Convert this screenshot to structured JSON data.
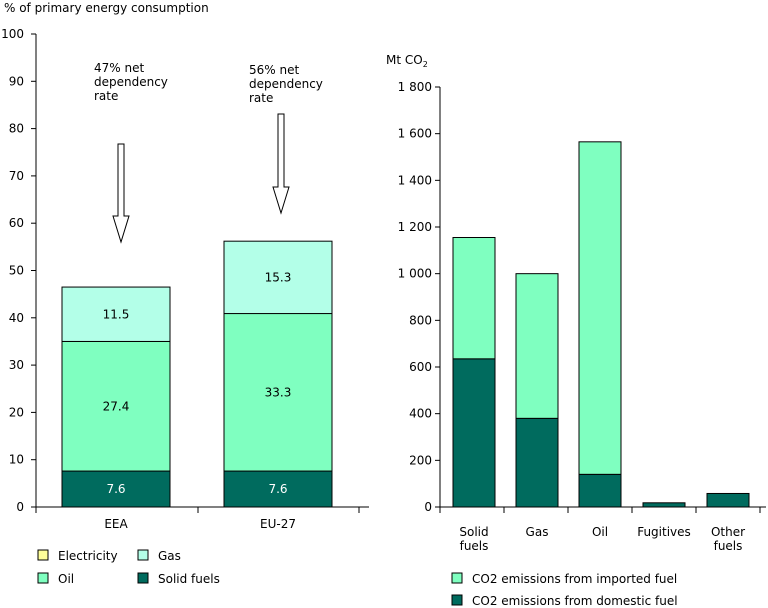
{
  "chart_data": [
    {
      "type": "bar",
      "stacked": true,
      "ylabel": "% of primary energy consumption",
      "ylim": [
        0,
        100
      ],
      "yticks": [
        0,
        10,
        20,
        30,
        40,
        50,
        60,
        70,
        80,
        90,
        100
      ],
      "categories": [
        "EEA",
        "EU-27"
      ],
      "series": [
        {
          "name": "Solid fuels",
          "values": [
            7.6,
            7.6
          ],
          "color": "#006b5e"
        },
        {
          "name": "Oil",
          "values": [
            27.4,
            33.3
          ],
          "color": "#7fffc0"
        },
        {
          "name": "Gas",
          "values": [
            11.5,
            15.3
          ],
          "color": "#b3ffe8"
        },
        {
          "name": "Electricity",
          "values": [
            0,
            0
          ],
          "color": "#ffff99"
        }
      ],
      "data_labels": [
        [
          "7.6",
          "7.6"
        ],
        [
          "27.4",
          "33.3"
        ],
        [
          "11.5",
          "15.3"
        ]
      ],
      "annotations": [
        {
          "lines": [
            "47% net",
            "dependency",
            "rate"
          ],
          "category": "EEA"
        },
        {
          "lines": [
            "56% net",
            "dependency",
            "rate"
          ],
          "category": "EU-27"
        }
      ],
      "legend": [
        "Electricity",
        "Gas",
        "Oil",
        "Solid fuels"
      ],
      "legend_placement": "bottom"
    },
    {
      "type": "bar",
      "stacked": true,
      "ylabel": "Mt CO",
      "ylabel_sub": "2",
      "ylim": [
        0,
        1800
      ],
      "yticks": [
        "0",
        "200",
        "400",
        "600",
        "800",
        "1 000",
        "1 200",
        "1 400",
        "1 600",
        "1 800"
      ],
      "categories": [
        [
          "Solid",
          "fuels"
        ],
        [
          "Gas"
        ],
        [
          "Oil"
        ],
        [
          "Fugitives"
        ],
        [
          "Other",
          "fuels"
        ]
      ],
      "series": [
        {
          "name": "CO2 emissions from domestic fuel",
          "values": [
            635,
            380,
            140,
            18,
            58
          ],
          "color": "#006b5e"
        },
        {
          "name": "CO2 emissions from imported fuel",
          "values": [
            520,
            620,
            1425,
            0,
            0
          ],
          "color": "#7fffc0"
        }
      ],
      "legend": [
        "CO2 emissions from imported fuel",
        "CO2 emissions from domestic fuel"
      ],
      "legend_placement": "bottom"
    }
  ]
}
